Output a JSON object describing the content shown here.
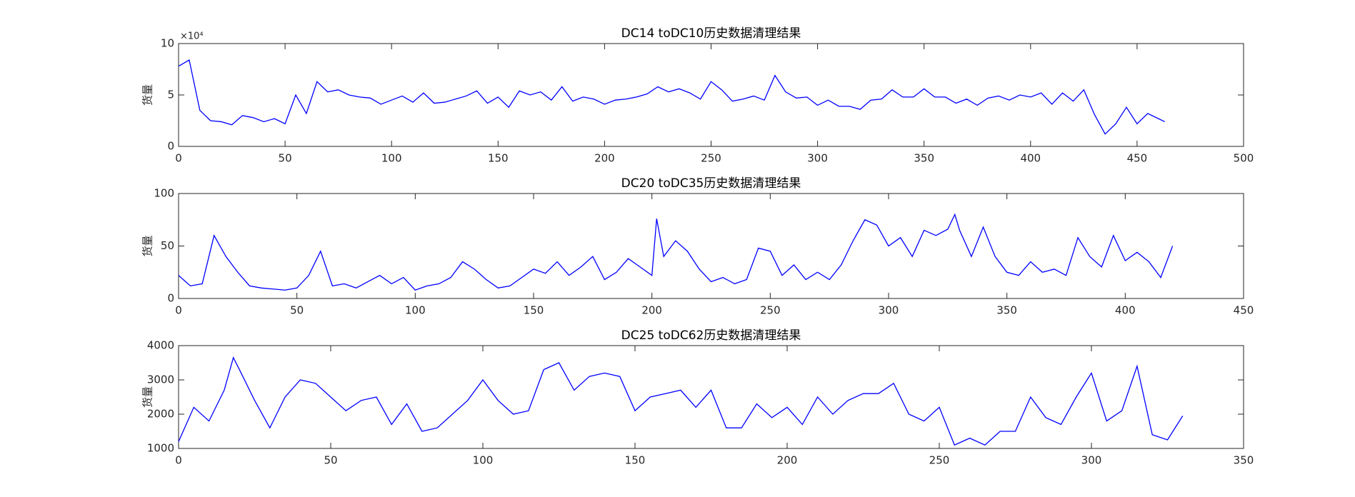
{
  "chart_data": [
    {
      "type": "line",
      "title": "DC14 toDC10历史数据清理结果",
      "ylabel": "货量",
      "y_multiplier": "×10⁴",
      "x": [
        0,
        5,
        10,
        15,
        20,
        25,
        30,
        35,
        40,
        45,
        50,
        55,
        60,
        65,
        70,
        75,
        80,
        85,
        90,
        95,
        100,
        105,
        110,
        115,
        120,
        125,
        130,
        135,
        140,
        145,
        150,
        155,
        160,
        165,
        170,
        175,
        180,
        185,
        190,
        195,
        200,
        205,
        210,
        215,
        220,
        225,
        230,
        235,
        240,
        245,
        250,
        255,
        260,
        265,
        270,
        275,
        280,
        285,
        290,
        295,
        300,
        305,
        310,
        315,
        320,
        325,
        330,
        335,
        340,
        345,
        350,
        355,
        360,
        365,
        370,
        375,
        380,
        385,
        390,
        395,
        400,
        405,
        410,
        415,
        420,
        425,
        430,
        435,
        440,
        445,
        450,
        455,
        460,
        463
      ],
      "series": [
        {
          "color": "#0000ff",
          "values": [
            7.8,
            8.4,
            3.5,
            2.5,
            2.4,
            2.1,
            3.0,
            2.8,
            2.4,
            2.7,
            2.2,
            5.0,
            3.2,
            6.3,
            5.3,
            5.5,
            5.0,
            4.8,
            4.7,
            4.1,
            4.5,
            4.9,
            4.3,
            5.2,
            4.2,
            4.3,
            4.6,
            4.9,
            5.4,
            4.2,
            4.8,
            3.8,
            5.4,
            5.0,
            5.3,
            4.5,
            5.8,
            4.4,
            4.8,
            4.6,
            4.1,
            4.5,
            4.6,
            4.8,
            5.1,
            5.8,
            5.3,
            5.6,
            5.2,
            4.6,
            6.3,
            5.5,
            4.4,
            4.6,
            4.9,
            4.5,
            6.9,
            5.3,
            4.7,
            4.8,
            4.0,
            4.5,
            3.9,
            3.9,
            3.6,
            4.5,
            4.6,
            5.5,
            4.8,
            4.8,
            5.6,
            4.8,
            4.8,
            4.2,
            4.6,
            4.0,
            4.7,
            4.9,
            4.5,
            5.0,
            4.8,
            5.2,
            4.1,
            5.2,
            4.4,
            5.5,
            3.1,
            1.2,
            2.2,
            3.8,
            2.2,
            3.2,
            2.7,
            2.4
          ]
        }
      ],
      "xlim": [
        0,
        500
      ],
      "xticks": [
        0,
        50,
        100,
        150,
        200,
        250,
        300,
        350,
        400,
        450,
        500
      ],
      "ylim": [
        0,
        10
      ],
      "yticks": [
        0,
        5,
        10
      ]
    },
    {
      "type": "line",
      "title": "DC20 toDC35历史数据清理结果",
      "ylabel": "货量",
      "x": [
        0,
        5,
        10,
        15,
        20,
        25,
        30,
        35,
        40,
        45,
        50,
        55,
        60,
        65,
        70,
        75,
        80,
        85,
        90,
        95,
        100,
        105,
        110,
        115,
        120,
        125,
        130,
        135,
        140,
        145,
        150,
        155,
        160,
        165,
        170,
        175,
        180,
        185,
        190,
        195,
        200,
        202,
        205,
        210,
        215,
        220,
        225,
        230,
        235,
        240,
        245,
        250,
        255,
        260,
        265,
        270,
        275,
        280,
        285,
        290,
        295,
        300,
        305,
        310,
        315,
        320,
        325,
        328,
        330,
        335,
        340,
        345,
        350,
        355,
        360,
        365,
        370,
        375,
        380,
        385,
        390,
        395,
        400,
        405,
        410,
        415,
        420
      ],
      "series": [
        {
          "color": "#0000ff",
          "values": [
            22,
            12,
            14,
            60,
            40,
            25,
            12,
            10,
            9,
            8,
            10,
            22,
            45,
            12,
            14,
            10,
            16,
            22,
            14,
            20,
            8,
            12,
            14,
            20,
            35,
            28,
            18,
            10,
            12,
            20,
            28,
            24,
            35,
            22,
            30,
            40,
            18,
            25,
            38,
            30,
            22,
            76,
            40,
            55,
            45,
            28,
            16,
            20,
            14,
            18,
            48,
            45,
            22,
            32,
            18,
            25,
            18,
            32,
            55,
            75,
            70,
            50,
            58,
            40,
            65,
            60,
            66,
            80,
            65,
            40,
            68,
            40,
            25,
            22,
            35,
            25,
            28,
            22,
            58,
            40,
            30,
            60,
            36,
            44,
            35,
            20,
            50
          ]
        }
      ],
      "xlim": [
        0,
        450
      ],
      "xticks": [
        0,
        50,
        100,
        150,
        200,
        250,
        300,
        350,
        400,
        450
      ],
      "ylim": [
        0,
        100
      ],
      "yticks": [
        0,
        50,
        100
      ]
    },
    {
      "type": "line",
      "title": "DC25 toDC62历史数据清理结果",
      "ylabel": "货量",
      "x": [
        0,
        5,
        10,
        15,
        18,
        20,
        25,
        30,
        35,
        40,
        45,
        50,
        55,
        60,
        65,
        70,
        75,
        80,
        85,
        90,
        95,
        100,
        105,
        110,
        115,
        120,
        125,
        130,
        135,
        140,
        145,
        150,
        155,
        160,
        165,
        170,
        175,
        180,
        185,
        190,
        195,
        200,
        205,
        210,
        215,
        220,
        225,
        230,
        235,
        240,
        245,
        250,
        255,
        260,
        265,
        270,
        275,
        280,
        285,
        290,
        295,
        300,
        305,
        310,
        315,
        320,
        325,
        330
      ],
      "series": [
        {
          "color": "#0000ff",
          "values": [
            1200,
            2200,
            1800,
            2700,
            3650,
            3300,
            2400,
            1600,
            2500,
            3000,
            2900,
            2500,
            2100,
            2400,
            2500,
            1700,
            2300,
            1500,
            1600,
            2000,
            2400,
            3000,
            2400,
            2000,
            2100,
            3300,
            3500,
            2700,
            3100,
            3200,
            3100,
            2100,
            2500,
            2600,
            2700,
            2200,
            2700,
            1600,
            1600,
            2300,
            1900,
            2200,
            1700,
            2500,
            2000,
            2400,
            2600,
            2600,
            2900,
            2000,
            1800,
            2200,
            1100,
            1300,
            1100,
            1500,
            1500,
            2500,
            1900,
            1700,
            2500,
            3200,
            1800,
            2100,
            3400,
            1400,
            1250,
            1950
          ]
        }
      ],
      "xlim": [
        0,
        350
      ],
      "xticks": [
        0,
        50,
        100,
        150,
        200,
        250,
        300,
        350
      ],
      "ylim": [
        1000,
        4000
      ],
      "yticks": [
        1000,
        2000,
        3000,
        4000
      ]
    }
  ]
}
